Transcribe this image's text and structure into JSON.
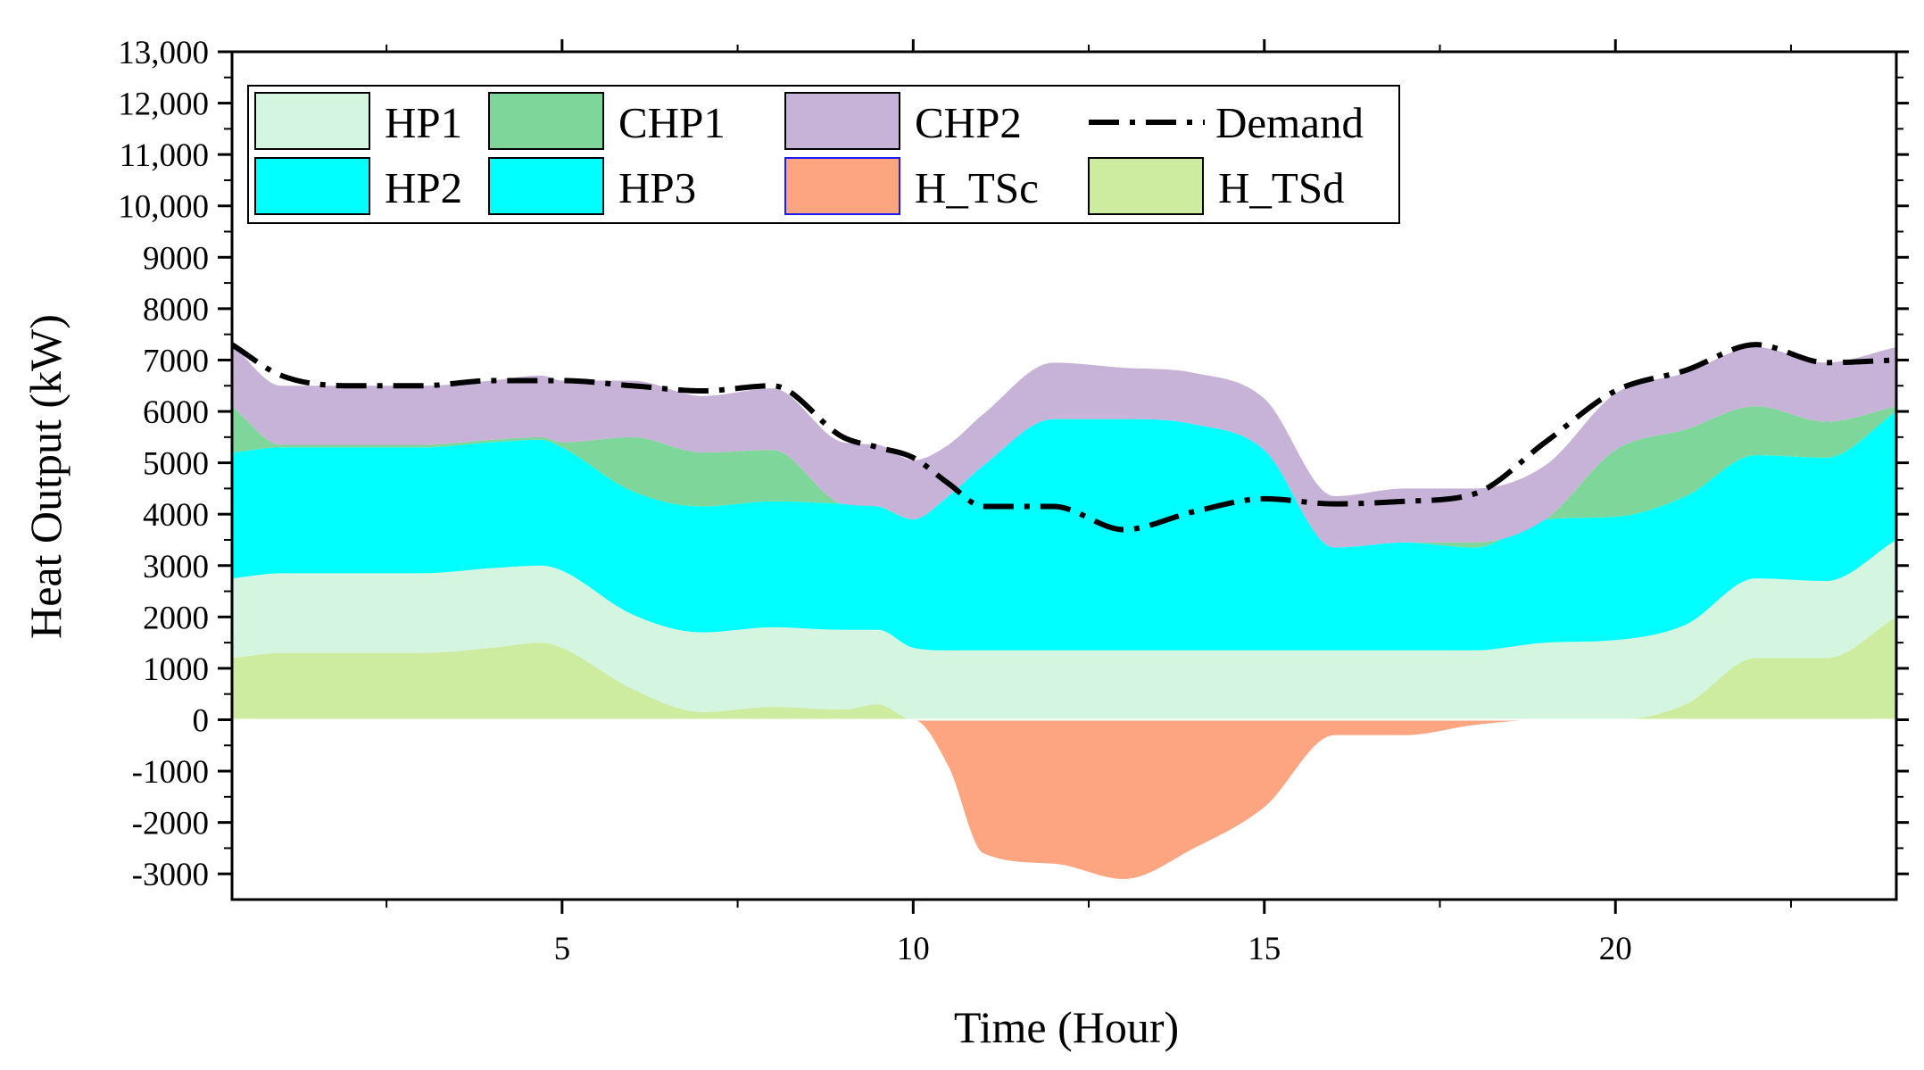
{
  "chart_data": {
    "type": "area",
    "title": "",
    "xlabel": "Time (Hour)",
    "ylabel": "Heat Output (kW)",
    "xlim": [
      0.3,
      24
    ],
    "ylim": [
      -3500,
      13000
    ],
    "x_ticks": [
      5,
      10,
      15,
      20
    ],
    "x_tick_labels": [
      "5",
      "10",
      "15",
      "20"
    ],
    "y_ticks": [
      -3000,
      -2000,
      -1000,
      0,
      1000,
      2000,
      3000,
      4000,
      5000,
      6000,
      7000,
      8000,
      9000,
      10000,
      11000,
      12000,
      13000
    ],
    "y_tick_labels": [
      "-3000",
      "-2000",
      "-1000",
      "0",
      "1000",
      "2000",
      "3000",
      "4000",
      "5000",
      "6000",
      "7000",
      "8000",
      "9000",
      "10,000",
      "11,000",
      "12,000",
      "13,000"
    ],
    "legend_position": "top-left",
    "x": [
      0.3,
      1,
      2,
      3,
      4,
      4.7,
      5,
      6,
      7,
      8,
      9,
      9.5,
      10,
      10.5,
      11,
      12,
      13,
      14,
      15,
      16,
      17,
      18,
      19,
      20,
      21,
      22,
      23,
      24
    ],
    "series": [
      {
        "name": "H_TSd",
        "color": "#cdeca0",
        "values": [
          1200,
          1300,
          1300,
          1300,
          1400,
          1500,
          1400,
          600,
          150,
          250,
          200,
          300,
          0,
          0,
          0,
          0,
          0,
          0,
          0,
          0,
          0,
          0,
          0,
          0,
          300,
          1200,
          1200,
          2000
        ]
      },
      {
        "name": "HP1",
        "color": "#d4f5e0",
        "values": [
          1550,
          1550,
          1550,
          1550,
          1550,
          1500,
          1500,
          1450,
          1550,
          1550,
          1550,
          1450,
          1400,
          1350,
          1350,
          1350,
          1350,
          1350,
          1350,
          1350,
          1350,
          1350,
          1500,
          1550,
          1550,
          1550,
          1500,
          1500
        ]
      },
      {
        "name": "HP2",
        "color": "#00ffff",
        "values": [
          2450,
          2450,
          2450,
          2450,
          2450,
          2450,
          2400,
          2400,
          2450,
          2450,
          2450,
          2400,
          2500,
          3000,
          3600,
          4500,
          4500,
          4400,
          3900,
          2000,
          2100,
          2000,
          2400,
          2400,
          2500,
          2400,
          2400,
          2500
        ]
      },
      {
        "name": "HP3",
        "color": "#00ffff",
        "values": [
          0,
          0,
          0,
          0,
          0,
          0,
          0,
          0,
          0,
          0,
          0,
          0,
          0,
          0,
          0,
          0,
          0,
          0,
          0,
          0,
          0,
          0,
          0,
          0,
          0,
          0,
          0,
          0
        ]
      },
      {
        "name": "CHP1",
        "color": "#7fd69a",
        "values": [
          900,
          50,
          50,
          50,
          50,
          50,
          100,
          1050,
          1050,
          1000,
          0,
          0,
          0,
          0,
          0,
          0,
          0,
          0,
          0,
          0,
          0,
          100,
          0,
          1300,
          1300,
          950,
          700,
          100
        ]
      },
      {
        "name": "CHP2",
        "color": "#c8b3d8",
        "values": [
          1200,
          1150,
          1150,
          1150,
          1150,
          1200,
          1200,
          1100,
          1100,
          1200,
          1200,
          1200,
          1150,
          1000,
          1000,
          1100,
          1000,
          1000,
          1000,
          1000,
          1050,
          1050,
          1050,
          1100,
          1100,
          1150,
          1150,
          1150
        ]
      },
      {
        "name": "H_TSc",
        "color": "#fca580",
        "values": [
          0,
          0,
          0,
          0,
          0,
          0,
          0,
          0,
          0,
          0,
          0,
          0,
          0,
          -900,
          -2600,
          -2800,
          -3100,
          -2500,
          -1700,
          -300,
          -300,
          -100,
          0,
          0,
          0,
          0,
          0,
          0
        ]
      },
      {
        "name": "Demand",
        "color": "#000000",
        "style": "dash-dot",
        "values": [
          7300,
          6700,
          6500,
          6500,
          6600,
          6600,
          6600,
          6500,
          6400,
          6500,
          5500,
          5300,
          5100,
          4600,
          4150,
          4150,
          3700,
          4050,
          4300,
          4200,
          4250,
          4400,
          5400,
          6400,
          6800,
          7300,
          6950,
          7000
        ]
      }
    ]
  },
  "legend": [
    {
      "name": "HP1",
      "kind": "patch",
      "color": "#d4f5e0",
      "border": "#000000"
    },
    {
      "name": "CHP1",
      "kind": "patch",
      "color": "#7fd69a",
      "border": "#000000"
    },
    {
      "name": "CHP2",
      "kind": "patch",
      "color": "#c8b3d8",
      "border": "#000000"
    },
    {
      "name": "Demand",
      "kind": "line",
      "color": "#000000"
    },
    {
      "name": "HP2",
      "kind": "patch",
      "color": "#00ffff",
      "border": "#000000"
    },
    {
      "name": "HP3",
      "kind": "patch",
      "color": "#00ffff",
      "border": "#000000"
    },
    {
      "name": "H_TSc",
      "kind": "patch",
      "color": "#fca580",
      "border": "#1a1aff"
    },
    {
      "name": "H_TSd",
      "kind": "patch",
      "color": "#cdeca0",
      "border": "#000000"
    }
  ]
}
